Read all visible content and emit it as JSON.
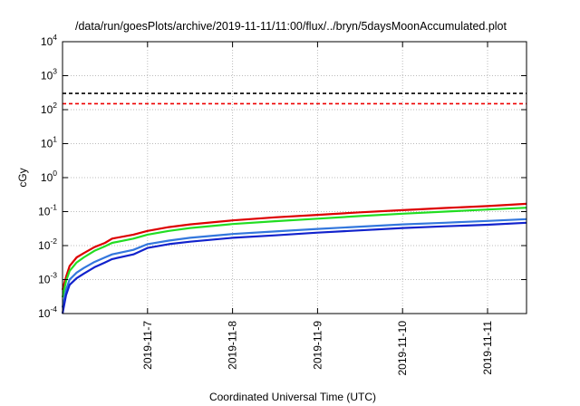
{
  "chart_data": {
    "type": "line",
    "title": "/data/run/goesPlots/archive/2019-11-11/11:00/flux/../bryn/5daysMoonAccumulated.plot",
    "xlabel": "Coordinated Universal Time (UTC)",
    "ylabel": "cGy",
    "y_scale": "log",
    "ylim": [
      0.0001,
      10000
    ],
    "xlim": [
      "2019-11-06T00:00",
      "2019-11-11T11:00"
    ],
    "y_ticks": [
      {
        "value": 0.0001,
        "base": "10",
        "exp": "-4"
      },
      {
        "value": 0.001,
        "base": "10",
        "exp": "-3"
      },
      {
        "value": 0.01,
        "base": "10",
        "exp": "-2"
      },
      {
        "value": 0.1,
        "base": "10",
        "exp": "-1"
      },
      {
        "value": 1,
        "base": "10",
        "exp": "0"
      },
      {
        "value": 10,
        "base": "10",
        "exp": "1"
      },
      {
        "value": 100,
        "base": "10",
        "exp": "2"
      },
      {
        "value": 1000,
        "base": "10",
        "exp": "3"
      },
      {
        "value": 10000,
        "base": "10",
        "exp": "4"
      }
    ],
    "x_ticks": [
      {
        "value": "2019-11-07T00:00",
        "label": "2019-11-7"
      },
      {
        "value": "2019-11-08T00:00",
        "label": "2019-11-8"
      },
      {
        "value": "2019-11-09T00:00",
        "label": "2019-11-9"
      },
      {
        "value": "2019-11-10T00:00",
        "label": "2019-11-10"
      },
      {
        "value": "2019-11-11T00:00",
        "label": "2019-11-11"
      }
    ],
    "grid": true,
    "reference_lines": [
      {
        "y": 300,
        "color": "#000000",
        "style": "dashed"
      },
      {
        "y": 150,
        "color": "#ee0000",
        "style": "dashed"
      }
    ],
    "series": [
      {
        "color": "#dd0000",
        "x": [
          "2019-11-06T00:00",
          "2019-11-06T01:00",
          "2019-11-06T02:00",
          "2019-11-06T04:00",
          "2019-11-06T06:00",
          "2019-11-06T09:00",
          "2019-11-06T12:00",
          "2019-11-06T14:00",
          "2019-11-06T20:00",
          "2019-11-07T00:00",
          "2019-11-07T06:00",
          "2019-11-07T12:00",
          "2019-11-08T00:00",
          "2019-11-08T12:00",
          "2019-11-09T00:00",
          "2019-11-09T12:00",
          "2019-11-10T00:00",
          "2019-11-10T12:00",
          "2019-11-11T00:00",
          "2019-11-11T11:00"
        ],
        "y": [
          0.0005,
          0.0012,
          0.0025,
          0.0045,
          0.006,
          0.009,
          0.012,
          0.016,
          0.021,
          0.027,
          0.035,
          0.042,
          0.055,
          0.068,
          0.08,
          0.095,
          0.11,
          0.128,
          0.145,
          0.17
        ]
      },
      {
        "color": "#22dd22",
        "x": [
          "2019-11-06T00:00",
          "2019-11-06T01:00",
          "2019-11-06T02:00",
          "2019-11-06T04:00",
          "2019-11-06T06:00",
          "2019-11-06T09:00",
          "2019-11-06T12:00",
          "2019-11-06T14:00",
          "2019-11-06T20:00",
          "2019-11-07T00:00",
          "2019-11-07T06:00",
          "2019-11-07T12:00",
          "2019-11-08T00:00",
          "2019-11-08T12:00",
          "2019-11-09T00:00",
          "2019-11-09T12:00",
          "2019-11-10T00:00",
          "2019-11-10T12:00",
          "2019-11-11T00:00",
          "2019-11-11T11:00"
        ],
        "y": [
          0.0003,
          0.0009,
          0.0018,
          0.0032,
          0.0045,
          0.007,
          0.0095,
          0.012,
          0.016,
          0.021,
          0.027,
          0.033,
          0.043,
          0.052,
          0.062,
          0.074,
          0.087,
          0.1,
          0.115,
          0.13
        ]
      },
      {
        "color": "#3377dd",
        "x": [
          "2019-11-06T00:00",
          "2019-11-06T01:00",
          "2019-11-06T02:00",
          "2019-11-06T04:00",
          "2019-11-06T06:00",
          "2019-11-06T09:00",
          "2019-11-06T12:00",
          "2019-11-06T14:00",
          "2019-11-06T20:00",
          "2019-11-07T00:00",
          "2019-11-07T06:00",
          "2019-11-07T12:00",
          "2019-11-08T00:00",
          "2019-11-08T12:00",
          "2019-11-09T00:00",
          "2019-11-09T12:00",
          "2019-11-10T00:00",
          "2019-11-10T12:00",
          "2019-11-11T00:00",
          "2019-11-11T11:00"
        ],
        "y": [
          0.00015,
          0.0005,
          0.001,
          0.0016,
          0.0022,
          0.0033,
          0.0045,
          0.0055,
          0.0075,
          0.011,
          0.014,
          0.017,
          0.022,
          0.026,
          0.031,
          0.036,
          0.042,
          0.047,
          0.053,
          0.06
        ]
      },
      {
        "color": "#1122cc",
        "x": [
          "2019-11-06T00:00",
          "2019-11-06T01:00",
          "2019-11-06T02:00",
          "2019-11-06T04:00",
          "2019-11-06T06:00",
          "2019-11-06T09:00",
          "2019-11-06T12:00",
          "2019-11-06T14:00",
          "2019-11-06T20:00",
          "2019-11-07T00:00",
          "2019-11-07T06:00",
          "2019-11-07T12:00",
          "2019-11-08T00:00",
          "2019-11-08T12:00",
          "2019-11-09T00:00",
          "2019-11-09T12:00",
          "2019-11-10T00:00",
          "2019-11-10T12:00",
          "2019-11-11T00:00",
          "2019-11-11T11:00"
        ],
        "y": [
          0.0001,
          0.00035,
          0.0007,
          0.0011,
          0.0015,
          0.0023,
          0.0032,
          0.004,
          0.0055,
          0.0085,
          0.011,
          0.013,
          0.017,
          0.02,
          0.024,
          0.028,
          0.033,
          0.037,
          0.041,
          0.047
        ]
      }
    ]
  }
}
